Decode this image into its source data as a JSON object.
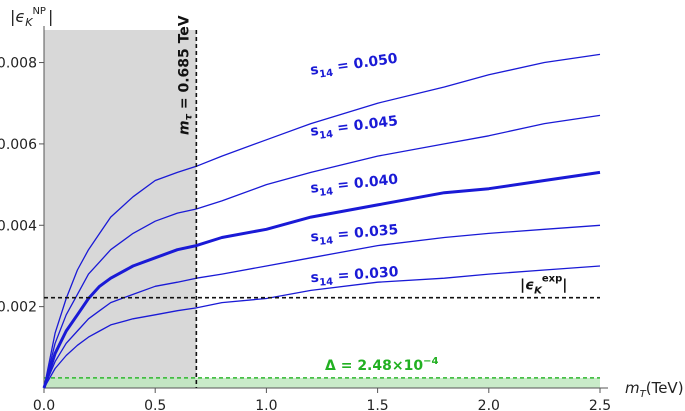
{
  "chart_data": {
    "type": "line",
    "ylabel": "|ϵ",
    "ylabel_sub": "K",
    "ylabel_sup": "NP",
    "ylabel_close": "|",
    "xlabel": "m",
    "xlabel_sub": "T",
    "xlabel_unit": "(TeV)",
    "xlim": [
      0,
      2.5
    ],
    "ylim": [
      0,
      0.0088
    ],
    "x_ticks": [
      {
        "value": 0.0,
        "label": "0.0"
      },
      {
        "value": 0.5,
        "label": "0.5"
      },
      {
        "value": 1.0,
        "label": "1.0"
      },
      {
        "value": 1.5,
        "label": "1.5"
      },
      {
        "value": 2.0,
        "label": "2.0"
      },
      {
        "value": 2.5,
        "label": "2.5"
      }
    ],
    "y_ticks": [
      {
        "value": 0.002,
        "label": "0.002"
      },
      {
        "value": 0.004,
        "label": "0.004"
      },
      {
        "value": 0.006,
        "label": "0.006"
      },
      {
        "value": 0.008,
        "label": "0.008"
      }
    ],
    "x": [
      0.0,
      0.05,
      0.1,
      0.15,
      0.2,
      0.25,
      0.3,
      0.4,
      0.5,
      0.6,
      0.685,
      0.8,
      1.0,
      1.2,
      1.5,
      1.8,
      2.0,
      2.25,
      2.5
    ],
    "series": [
      {
        "name": "s14 = 0.050",
        "width": 1.3,
        "values": [
          0.0,
          0.00135,
          0.0022,
          0.0029,
          0.0034,
          0.0038,
          0.0042,
          0.0047,
          0.0051,
          0.0053,
          0.00545,
          0.0057,
          0.0061,
          0.0065,
          0.007,
          0.0074,
          0.0077,
          0.008,
          0.0082
        ]
      },
      {
        "name": "s14 = 0.045",
        "width": 1.3,
        "values": [
          0.0,
          0.0011,
          0.0018,
          0.0023,
          0.0028,
          0.0031,
          0.0034,
          0.0038,
          0.0041,
          0.0043,
          0.0044,
          0.0046,
          0.005,
          0.0053,
          0.0057,
          0.006,
          0.0062,
          0.0065,
          0.0067
        ]
      },
      {
        "name": "s14 = 0.040",
        "width": 3,
        "values": [
          0.0,
          0.00085,
          0.0014,
          0.0018,
          0.0022,
          0.0025,
          0.0027,
          0.003,
          0.0032,
          0.0034,
          0.0035,
          0.0037,
          0.0039,
          0.0042,
          0.0045,
          0.0048,
          0.0049,
          0.0051,
          0.0053
        ]
      },
      {
        "name": "s14 = 0.035",
        "width": 1.3,
        "values": [
          0.0,
          0.00065,
          0.0011,
          0.0014,
          0.0017,
          0.0019,
          0.0021,
          0.0023,
          0.0025,
          0.0026,
          0.0027,
          0.0028,
          0.003,
          0.0032,
          0.0035,
          0.0037,
          0.0038,
          0.0039,
          0.004
        ]
      },
      {
        "name": "s14 = 0.030",
        "width": 1.3,
        "values": [
          0.0,
          0.00048,
          0.0008,
          0.00105,
          0.00125,
          0.0014,
          0.00155,
          0.0017,
          0.0018,
          0.0019,
          0.00197,
          0.0021,
          0.0022,
          0.0024,
          0.0026,
          0.0027,
          0.0028,
          0.0029,
          0.003
        ]
      }
    ],
    "curve_labels": [
      {
        "pre": "s",
        "sub": "14",
        "post": " = 0.050",
        "x": 1.2,
        "y": 0.0077,
        "rot": -8
      },
      {
        "pre": "s",
        "sub": "14",
        "post": " = 0.045",
        "x": 1.2,
        "y": 0.0062,
        "rot": -7
      },
      {
        "pre": "s",
        "sub": "14",
        "post": " = 0.040",
        "x": 1.2,
        "y": 0.0048,
        "rot": -6
      },
      {
        "pre": "s",
        "sub": "14",
        "post": " = 0.035",
        "x": 1.2,
        "y": 0.0036,
        "rot": -5
      },
      {
        "pre": "s",
        "sub": "14",
        "post": " = 0.030",
        "x": 1.2,
        "y": 0.0026,
        "rot": -4
      }
    ],
    "exclusion_region": {
      "x_max": 0.685
    },
    "vline": {
      "x": 0.685,
      "label_pre": "m",
      "label_sub": "τ",
      "label_post": " = 0.685 TeV"
    },
    "hline": {
      "y": 0.00222,
      "label_pre": "|ϵ",
      "label_sub": "K",
      "label_sup": "exp",
      "label_post": "|"
    },
    "band": {
      "y_max": 0.000248,
      "label": "Δ = 2.48×10",
      "label_sup": "−4"
    },
    "colors": {
      "curve": "#1a1ad6",
      "band_fill": "#bfe8bf",
      "band_line": "#2eb82e",
      "band_label": "#22b022",
      "region": "#d8d8d8",
      "dashed": "#111111"
    }
  }
}
